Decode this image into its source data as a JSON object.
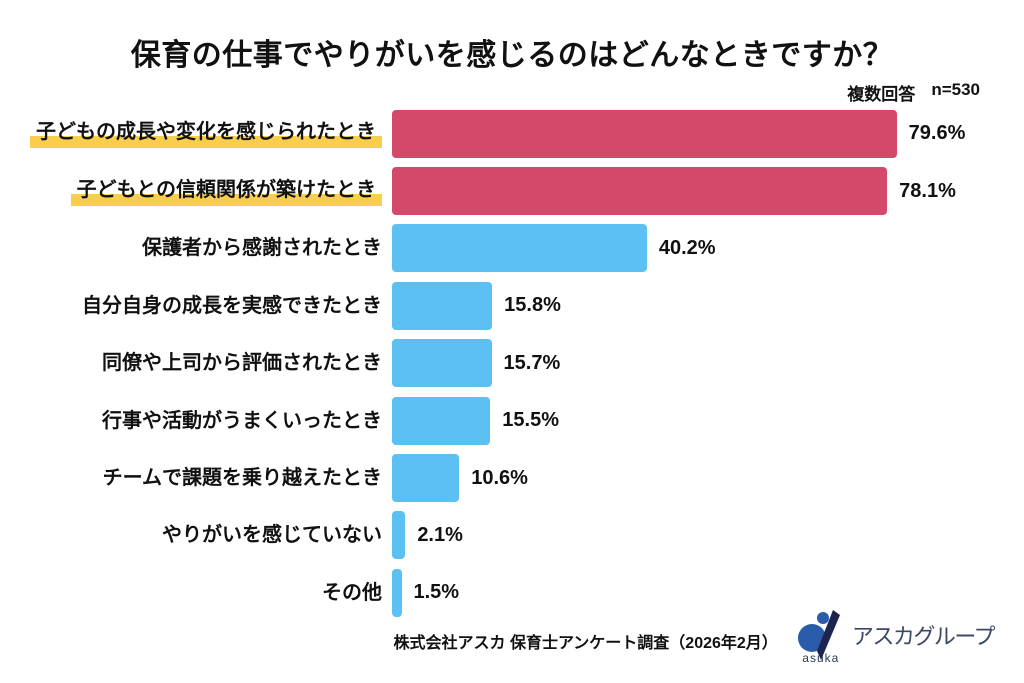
{
  "title": "保育の仕事でやりがいを感じるのはどんなときですか？",
  "survey_note": {
    "answer_type": "複数回答",
    "sample_size": "n=530"
  },
  "chart_data": {
    "type": "bar",
    "orientation": "horizontal",
    "title": "保育の仕事でやりがいを感じるのはどんなときですか？",
    "categories": [
      "子どもの成長や変化を感じられたとき",
      "子どもとの信頼関係が築けたとき",
      "保護者から感謝されたとき",
      "自分自身の成長を実感できたとき",
      "同僚や上司から評価されたとき",
      "行事や活動がうまくいったとき",
      "チームで課題を乗り越えたとき",
      "やりがいを感じていない",
      "その他"
    ],
    "values": [
      79.6,
      78.1,
      40.2,
      15.8,
      15.7,
      15.5,
      10.6,
      2.1,
      1.5
    ],
    "value_labels": [
      "79.6%",
      "78.1%",
      "40.2%",
      "15.8%",
      "15.7%",
      "15.5%",
      "10.6%",
      "2.1%",
      "1.5%"
    ],
    "highlighted": [
      true,
      true,
      false,
      false,
      false,
      false,
      false,
      false,
      false
    ],
    "xlim": [
      0,
      100
    ],
    "grid": false,
    "legend": false,
    "colors": {
      "emphasis_bar": "#D4486A",
      "default_bar": "#5CC1F2",
      "label_highlight": "#F9CE4D",
      "text": "#111111"
    }
  },
  "footer": {
    "source": "株式会社アスカ 保育士アンケート調査（2026年2月）",
    "logo": {
      "en": "asuka",
      "jp": "アスカグループ",
      "mark_blue": "#2A5CAB",
      "mark_navy": "#1B2550"
    }
  }
}
